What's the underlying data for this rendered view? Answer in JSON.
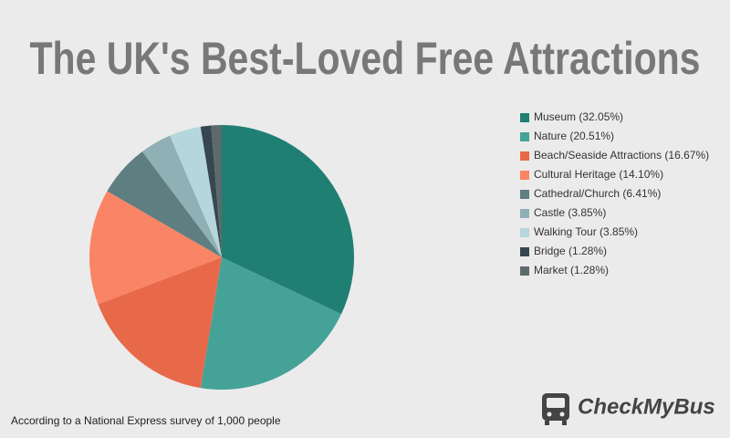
{
  "chart_data": {
    "type": "pie",
    "title": "The UK's Best-Loved Free Attractions",
    "categories": [
      "Museum (32.05%)",
      "Nature (20.51%)",
      "Beach/Seaside Attractions (16.67%)",
      "Cultural Heritage (14.10%)",
      "Cathedral/Church (6.41%)",
      "Castle (3.85%)",
      "Walking Tour (3.85%)",
      "Bridge (1.28%)",
      "Market (1.28%)"
    ],
    "values": [
      32.05,
      20.51,
      16.67,
      14.1,
      6.41,
      3.85,
      3.85,
      1.28,
      1.28
    ],
    "colors": [
      "#1f7f72",
      "#45a297",
      "#e8694a",
      "#fa8466",
      "#5e7e82",
      "#8fb0b4",
      "#b5d6dc",
      "#37474f",
      "#5d6a6d"
    ],
    "legend": "right",
    "footnote": "According to a National Express survey of 1,000 people"
  },
  "logo_text": "CheckMyBus"
}
